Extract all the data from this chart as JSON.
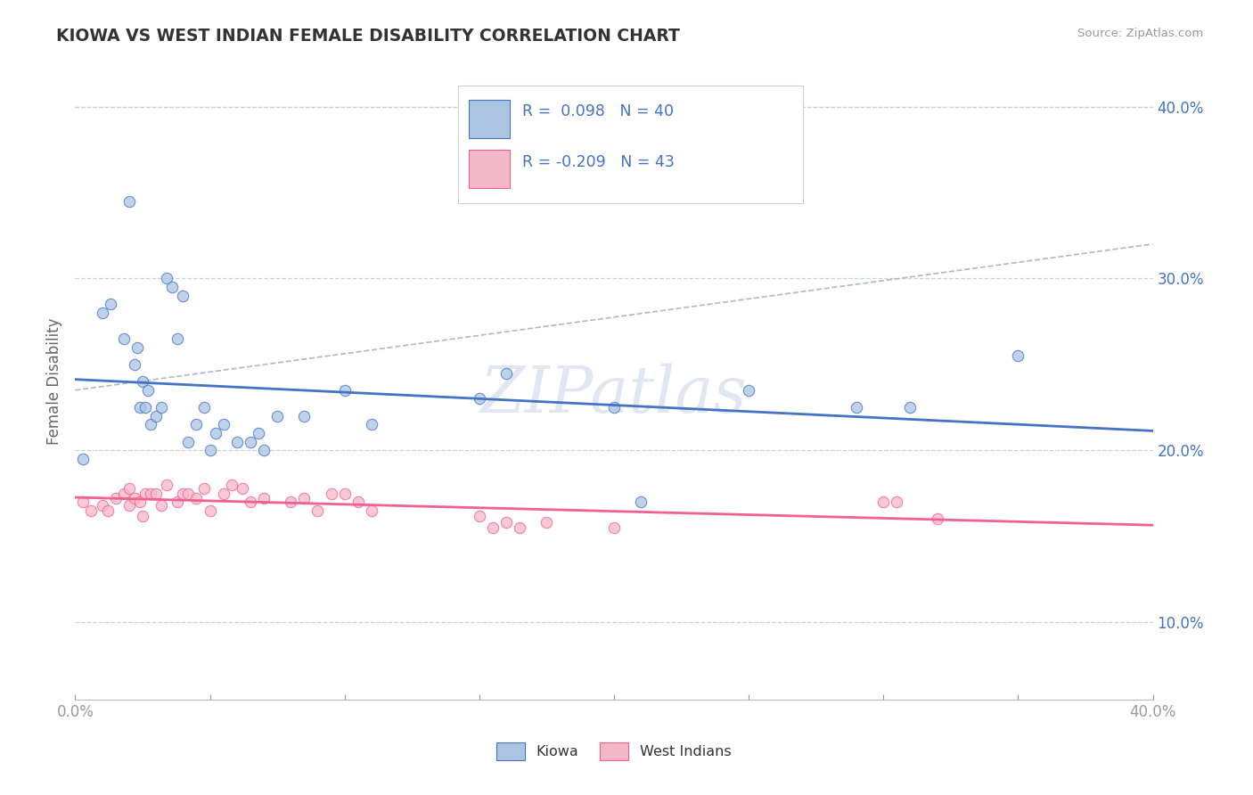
{
  "title": "KIOWA VS WEST INDIAN FEMALE DISABILITY CORRELATION CHART",
  "source": "Source: ZipAtlas.com",
  "ylabel": "Female Disability",
  "xlim": [
    0.0,
    0.4
  ],
  "ylim": [
    0.055,
    0.425
  ],
  "xticks": [
    0.0,
    0.05,
    0.1,
    0.15,
    0.2,
    0.25,
    0.3,
    0.35,
    0.4
  ],
  "xticklabels": [
    "0.0%",
    "",
    "",
    "",
    "",
    "",
    "",
    "",
    "40.0%"
  ],
  "yticks": [
    0.1,
    0.2,
    0.3,
    0.4
  ],
  "yticklabels": [
    "10.0%",
    "20.0%",
    "30.0%",
    "40.0%"
  ],
  "kiowa_R": 0.098,
  "kiowa_N": 40,
  "westindian_R": -0.209,
  "westindian_N": 43,
  "kiowa_color": "#aac4e2",
  "westindian_color": "#f5b8c8",
  "kiowa_line_color": "#4472c4",
  "westindian_line_color": "#f06090",
  "trend_line_color": "#b0b8c8",
  "background_color": "#ffffff",
  "grid_color": "#c8d0dc",
  "watermark": "ZIPatlas",
  "legend_color": "#4472c4",
  "kiowa_x": [
    0.003,
    0.01,
    0.013,
    0.018,
    0.02,
    0.022,
    0.023,
    0.024,
    0.025,
    0.026,
    0.027,
    0.028,
    0.03,
    0.032,
    0.034,
    0.036,
    0.038,
    0.04,
    0.042,
    0.045,
    0.048,
    0.05,
    0.052,
    0.055,
    0.06,
    0.065,
    0.068,
    0.07,
    0.075,
    0.085,
    0.1,
    0.11,
    0.15,
    0.16,
    0.2,
    0.21,
    0.25,
    0.29,
    0.31,
    0.35
  ],
  "kiowa_y": [
    0.195,
    0.28,
    0.285,
    0.265,
    0.345,
    0.25,
    0.26,
    0.225,
    0.24,
    0.225,
    0.235,
    0.215,
    0.22,
    0.225,
    0.3,
    0.295,
    0.265,
    0.29,
    0.205,
    0.215,
    0.225,
    0.2,
    0.21,
    0.215,
    0.205,
    0.205,
    0.21,
    0.2,
    0.22,
    0.22,
    0.235,
    0.215,
    0.23,
    0.245,
    0.225,
    0.17,
    0.235,
    0.225,
    0.225,
    0.255
  ],
  "westindian_x": [
    0.003,
    0.006,
    0.01,
    0.012,
    0.015,
    0.018,
    0.02,
    0.02,
    0.022,
    0.024,
    0.025,
    0.026,
    0.028,
    0.03,
    0.032,
    0.034,
    0.038,
    0.04,
    0.042,
    0.045,
    0.048,
    0.05,
    0.055,
    0.058,
    0.062,
    0.065,
    0.07,
    0.08,
    0.085,
    0.09,
    0.095,
    0.1,
    0.105,
    0.11,
    0.15,
    0.155,
    0.16,
    0.165,
    0.175,
    0.2,
    0.3,
    0.305,
    0.32
  ],
  "westindian_y": [
    0.17,
    0.165,
    0.168,
    0.165,
    0.172,
    0.175,
    0.168,
    0.178,
    0.172,
    0.17,
    0.162,
    0.175,
    0.175,
    0.175,
    0.168,
    0.18,
    0.17,
    0.175,
    0.175,
    0.172,
    0.178,
    0.165,
    0.175,
    0.18,
    0.178,
    0.17,
    0.172,
    0.17,
    0.172,
    0.165,
    0.175,
    0.175,
    0.17,
    0.165,
    0.162,
    0.155,
    0.158,
    0.155,
    0.158,
    0.155,
    0.17,
    0.17,
    0.16
  ]
}
